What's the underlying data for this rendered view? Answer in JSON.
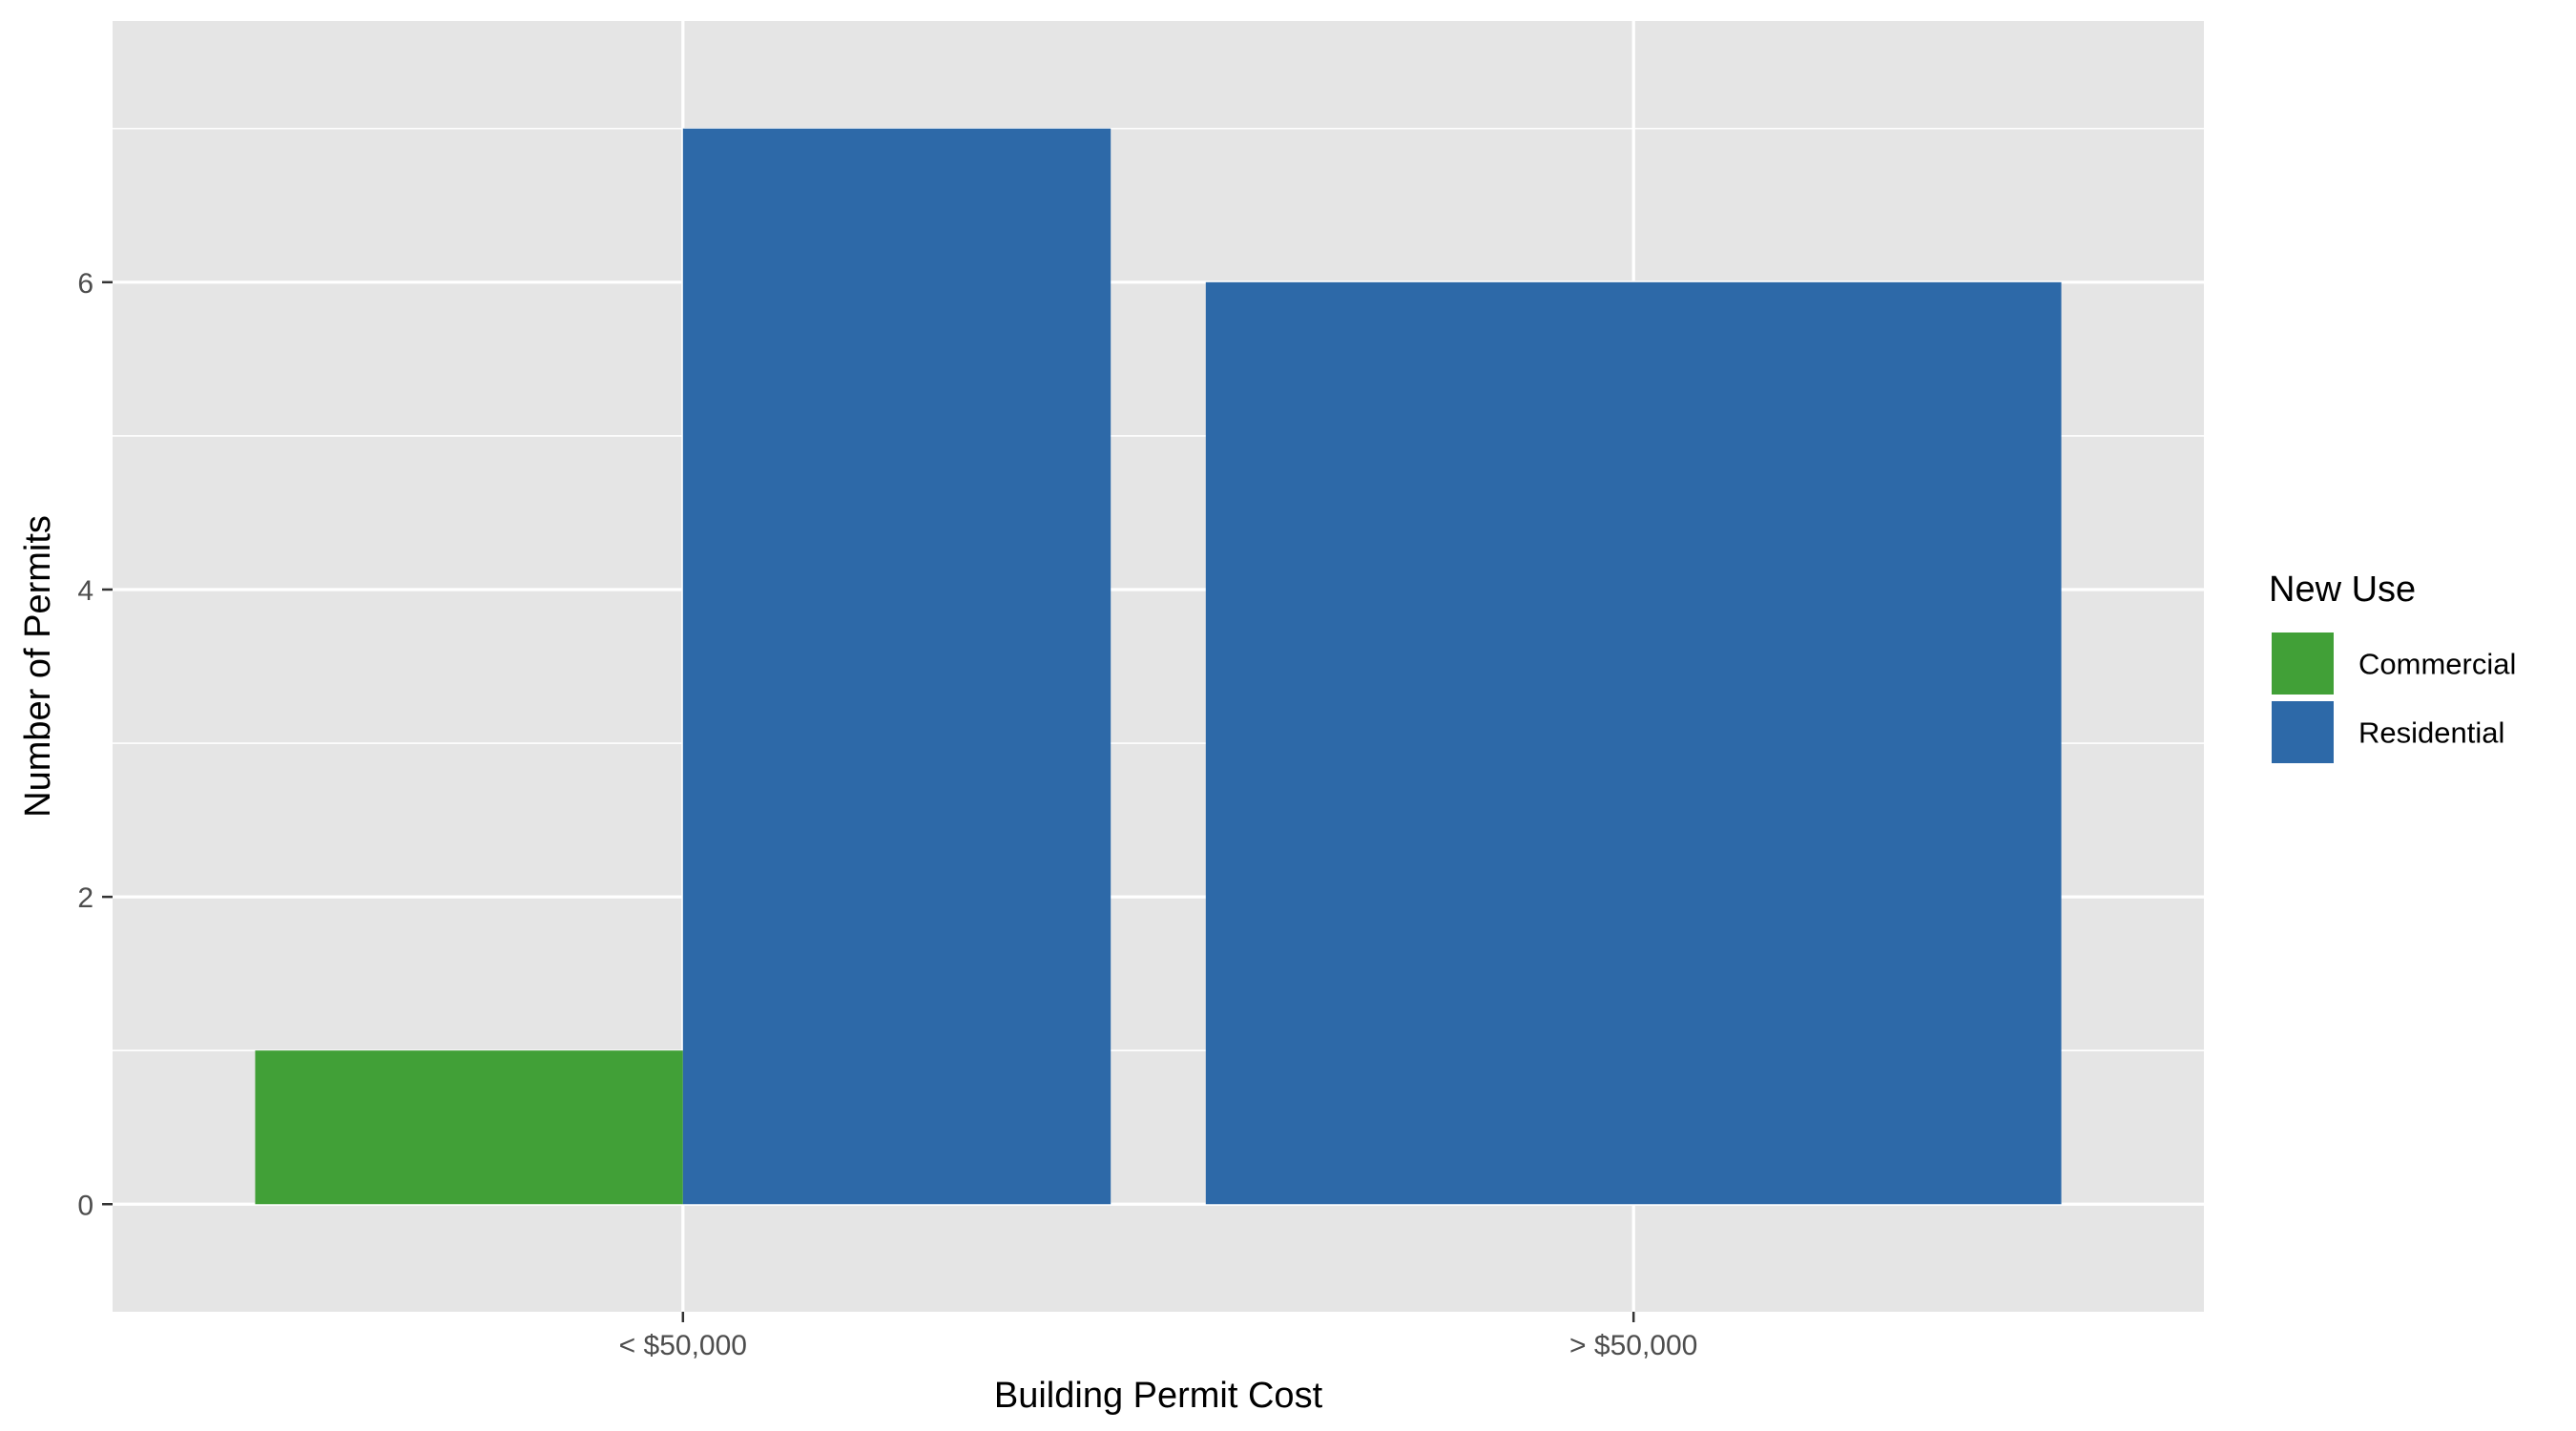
{
  "chart_data": {
    "type": "bar",
    "layout": "dodged",
    "categories": [
      "< $50,000",
      "> $50,000"
    ],
    "series": [
      {
        "name": "Commercial",
        "values": [
          1,
          null
        ],
        "color": "#41A037"
      },
      {
        "name": "Residential",
        "values": [
          7,
          6
        ],
        "color": "#2D69A8"
      }
    ],
    "xlabel": "Building Permit Cost",
    "ylabel": "Number of Permits",
    "ylim": [
      -0.7,
      7.7
    ],
    "yticks": [
      0,
      2,
      4,
      6
    ],
    "ytick_labels": [
      "0",
      "2",
      "4",
      "6"
    ],
    "grid": true,
    "legend": {
      "title": "New Use",
      "position": "right",
      "items": [
        "Commercial",
        "Residential"
      ]
    },
    "colors": {
      "panel_background": "#E5E5E5",
      "grid": "#FFFFFF",
      "tick_text": "#4D4D4D",
      "tick_mark": "#333333"
    }
  }
}
